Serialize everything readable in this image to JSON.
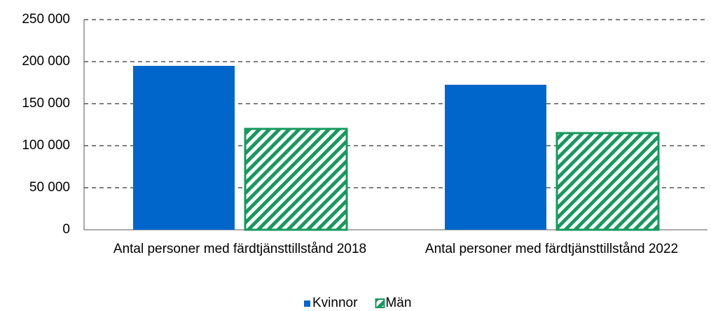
{
  "chart_data": {
    "type": "bar",
    "categories": [
      "Antal personer med färdtjänsttillstånd 2018",
      "Antal personer med färdtjänsttillstånd 2022"
    ],
    "series": [
      {
        "name": "Kvinnor",
        "color": "#0066cc",
        "values": [
          195000,
          172500
        ]
      },
      {
        "name": "Män",
        "color": "#17995e",
        "hatch": true,
        "values": [
          120000,
          115000
        ]
      }
    ],
    "ylim": [
      0,
      250000
    ],
    "yticks": [
      {
        "value": 0,
        "label": "0"
      },
      {
        "value": 50000,
        "label": "50 000"
      },
      {
        "value": 100000,
        "label": "100 000"
      },
      {
        "value": 150000,
        "label": "150 000"
      },
      {
        "value": 200000,
        "label": "200 000"
      },
      {
        "value": 250000,
        "label": "250 000"
      }
    ],
    "grid": true,
    "legend": "bottom"
  }
}
